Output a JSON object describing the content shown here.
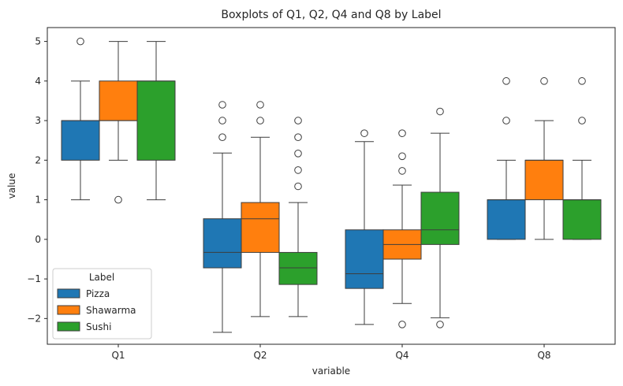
{
  "chart_data": {
    "type": "boxplot",
    "title": "Boxplots of Q1, Q2, Q4 and Q8 by Label",
    "xlabel": "variable",
    "ylabel": "value",
    "ylim": [
      -2.65,
      5.35
    ],
    "yticks": [
      -2,
      -1,
      0,
      1,
      2,
      3,
      4,
      5
    ],
    "grid": false,
    "legend": {
      "title": "Label",
      "placement": "lower-left"
    },
    "categories": [
      "Q1",
      "Q2",
      "Q4",
      "Q8"
    ],
    "series": [
      {
        "name": "Pizza",
        "color": "#1f77b4",
        "boxes": [
          {
            "whislo": 1,
            "q1": 2,
            "med": 3,
            "q3": 3,
            "whishi": 4,
            "fliers": [
              5
            ]
          },
          {
            "whislo": -2.35,
            "q1": -0.72,
            "med": -0.33,
            "q3": 0.52,
            "whishi": 2.18,
            "fliers": [
              2.58,
              3.0,
              3.4
            ]
          },
          {
            "whislo": -2.15,
            "q1": -1.24,
            "med": -0.87,
            "q3": 0.24,
            "whishi": 2.47,
            "fliers": [
              2.68
            ]
          },
          {
            "whislo": 0,
            "q1": 0,
            "med": 1,
            "q3": 1,
            "whishi": 2,
            "fliers": [
              3,
              4
            ]
          }
        ]
      },
      {
        "name": "Shawarma",
        "color": "#ff7f0e",
        "boxes": [
          {
            "whislo": 2,
            "q1": 3,
            "med": 3,
            "q3": 4,
            "whishi": 5,
            "fliers": [
              1
            ]
          },
          {
            "whislo": -1.95,
            "q1": -0.33,
            "med": 0.52,
            "q3": 0.93,
            "whishi": 2.58,
            "fliers": [
              3.0,
              3.4
            ]
          },
          {
            "whislo": -1.62,
            "q1": -0.5,
            "med": -0.13,
            "q3": 0.24,
            "whishi": 1.37,
            "fliers": [
              1.73,
              2.1,
              2.68,
              -2.15
            ]
          },
          {
            "whislo": 0,
            "q1": 1,
            "med": 2,
            "q3": 2,
            "whishi": 3,
            "fliers": [
              4
            ]
          }
        ]
      },
      {
        "name": "Sushi",
        "color": "#2ca02c",
        "boxes": [
          {
            "whislo": 1,
            "q1": 2,
            "med": 4,
            "q3": 4,
            "whishi": 5,
            "fliers": []
          },
          {
            "whislo": -1.95,
            "q1": -1.14,
            "med": -0.72,
            "q3": -0.33,
            "whishi": 0.93,
            "fliers": [
              1.34,
              1.75,
              2.17,
              2.58,
              3.0
            ]
          },
          {
            "whislo": -1.98,
            "q1": -0.13,
            "med": 0.24,
            "q3": 1.19,
            "whishi": 2.68,
            "fliers": [
              3.23,
              -2.15
            ]
          },
          {
            "whislo": 0,
            "q1": 0,
            "med": 1,
            "q3": 1,
            "whishi": 2,
            "fliers": [
              3,
              4
            ]
          }
        ]
      }
    ]
  }
}
